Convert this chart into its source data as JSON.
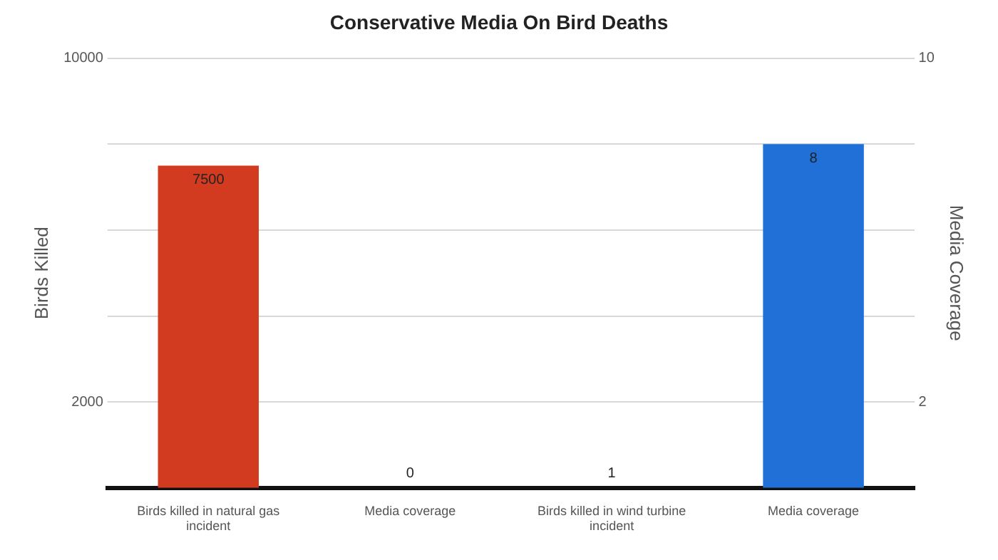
{
  "chart_data": {
    "type": "bar",
    "title": "Conservative Media On Bird Deaths",
    "categories": [
      "Birds killed in natural gas incident",
      "Media coverage",
      "Birds killed in wind turbine incident",
      "Media coverage"
    ],
    "series": [
      {
        "color": "#d33b20",
        "values": [
          7500,
          null,
          1,
          null
        ]
      },
      {
        "color": "#2070d8",
        "values": [
          null,
          0,
          null,
          8
        ],
        "axis": "y2"
      }
    ],
    "ylabel": "Birds Killed",
    "y2label": "Media Coverage",
    "ylim": [
      0,
      10000
    ],
    "yticks": [
      {
        "value": 2000,
        "label": "2000"
      },
      {
        "value": 4000,
        "label": null
      },
      {
        "value": 6000,
        "label": null
      },
      {
        "value": 8000,
        "label": null
      },
      {
        "value": 10000,
        "label": "10000"
      }
    ],
    "y2lim": [
      0,
      10
    ],
    "y2ticks": [
      {
        "value": 2,
        "label": "2"
      },
      {
        "value": 4,
        "label": null
      },
      {
        "value": 6,
        "label": null
      },
      {
        "value": 8,
        "label": null
      },
      {
        "value": 10,
        "label": "10"
      }
    ],
    "grid": "y",
    "data_labels": true
  }
}
